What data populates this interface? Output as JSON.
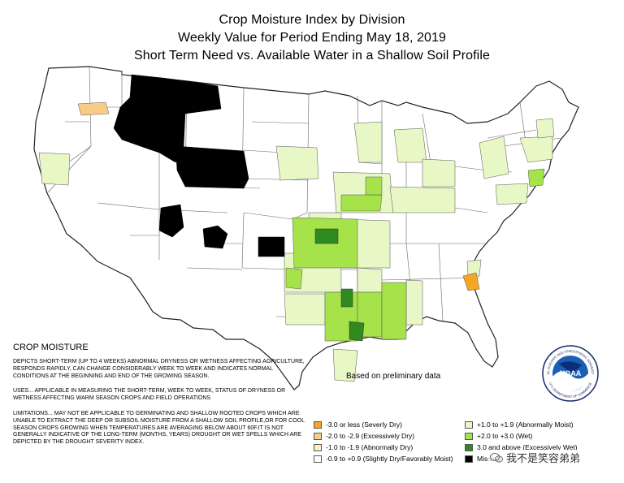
{
  "title": {
    "line1": "Crop Moisture Index by Division",
    "line2": "Weekly Value for Period Ending May 18, 2019",
    "line3": "Short Term Need vs. Available Water in a Shallow Soil Profile"
  },
  "info": {
    "heading": "CROP MOISTURE",
    "paragraphs": [
      "DEPICTS SHORT-TERM (UP TO 4 WEEKS) ABNORMAL DRYNESS OR WETNESS AFFECTING AGRICULTURE, RESPONDS RAPIDLY, CAN CHANGE CONSIDERABLY WEEK TO WEEK AND INDICATES NORMAL CONDITIONS AT THE BEGINNING AND END OF THE GROWING SEASON.",
      "USES... APPLICABLE IN MEASURING THE SHORT-TERM, WEEK TO WEEK, STATUS OF DRYNESS OR WETNESS AFFECTING WARM SEASON CROPS AND FIELD OPERATIONS",
      "LIMITATIONS... MAY NOT BE APPLICABLE TO GERMINATING AND SHALLOW ROOTED CROPS WHICH ARE UNABLE TO EXTRACT THE DEEP OR SUBSOIL MOISTURE FROM A SHALLOW SOIL PROFILE,OR FOR COOL SEASON CROPS GROWING WHEN TEMPERATURES ARE AVERAGING BELOW ABOUT 60F.IT IS NOT GENERALLY INDICATIVE OF THE LONG-TERM (MONTHS, YEARS) DROUGHT OR WET SPELLS WHICH ARE DEPICTED BY THE DROUGHT SEVERITY INDEX."
    ]
  },
  "preliminary_note": "Based on preliminary data",
  "legend": {
    "left": [
      {
        "label": "-3.0 or less (Severly Dry)",
        "color": "#f5a623"
      },
      {
        "label": "-2.0 to -2.9 (Excessively Dry)",
        "color": "#f7cd86"
      },
      {
        "label": "-1.0 to -1.9 (Abnormally Dry)",
        "color": "#fbf0c4"
      },
      {
        "label": "-0.9 to +0.9 (Slightly Dry/Favorably Moist)",
        "color": "#ffffff"
      }
    ],
    "right": [
      {
        "label": "+1.0 to +1.9 (Abnormally Moist)",
        "color": "#e8f7c6"
      },
      {
        "label": "+2.0 to +3.0 (Wet)",
        "color": "#a6e24a"
      },
      {
        "label": "3.0 and above (Excessively Wet)",
        "color": "#2f8a1f"
      },
      {
        "label": "Missing",
        "color": "#000000"
      }
    ]
  },
  "noaa": {
    "text": "NOAA",
    "ring_text": "NATIONAL OCEANIC AND ATMOSPHERIC ADMINISTRATION",
    "ring_bottom": "U.S. DEPARTMENT OF COMMERCE"
  },
  "watermark": {
    "text": "我不是笑容弟弟"
  },
  "colors": {
    "border": "#333333",
    "abnormally_moist": "#e8f7c6",
    "wet": "#a6e24a",
    "excessively_wet": "#2f8a1f",
    "missing": "#000000",
    "severely_dry": "#f5a623",
    "excessively_dry": "#f7cd86"
  }
}
